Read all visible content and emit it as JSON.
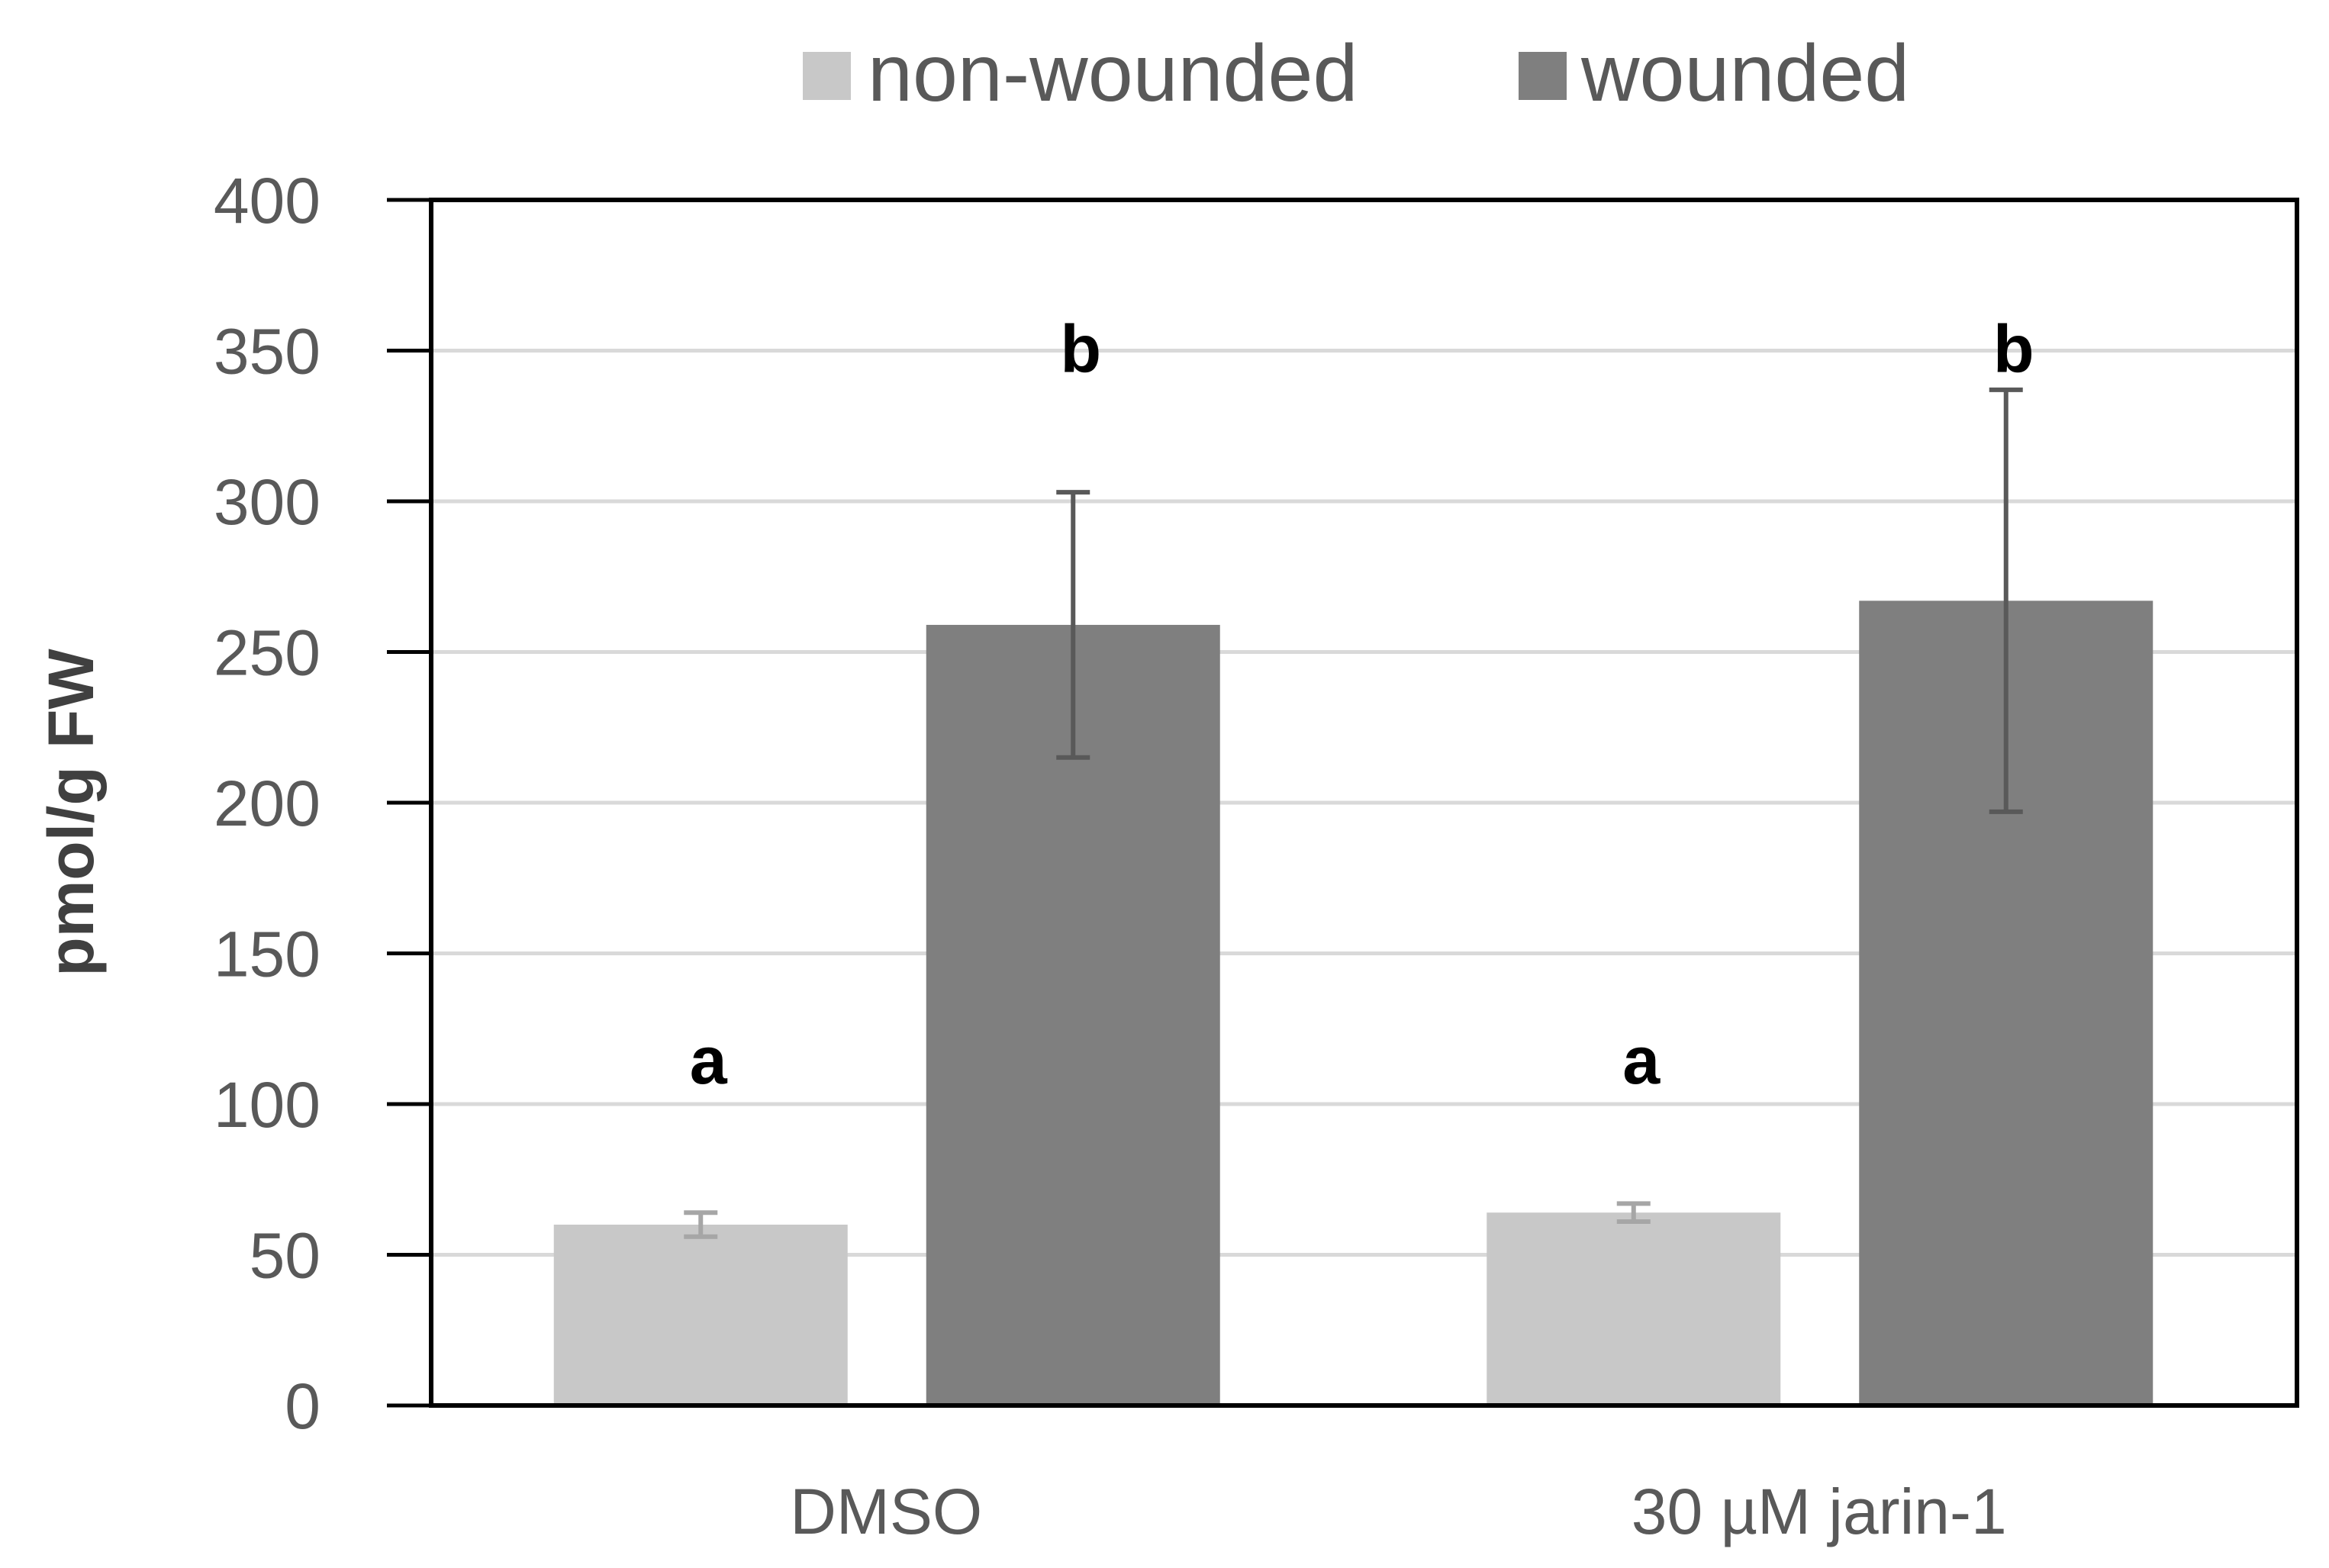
{
  "chart_data": {
    "type": "bar",
    "categories": [
      "DMSO",
      "30 µM jarin-1"
    ],
    "series": [
      {
        "name": "non-wounded",
        "color": "#c8c8c8",
        "values": [
          60,
          64
        ],
        "errors": [
          4,
          3
        ],
        "labels": [
          "a",
          "a"
        ]
      },
      {
        "name": "wounded",
        "color": "#7f7f7f",
        "values": [
          259,
          267
        ],
        "errors": [
          44,
          70
        ],
        "labels": [
          "b",
          "b"
        ]
      }
    ],
    "title": "",
    "xlabel": "",
    "ylabel": "pmol/g FW",
    "ylim": [
      0,
      400
    ],
    "yticks": [
      0,
      50,
      100,
      150,
      200,
      250,
      300,
      350,
      400
    ],
    "grid": true,
    "legend": "top-center"
  }
}
